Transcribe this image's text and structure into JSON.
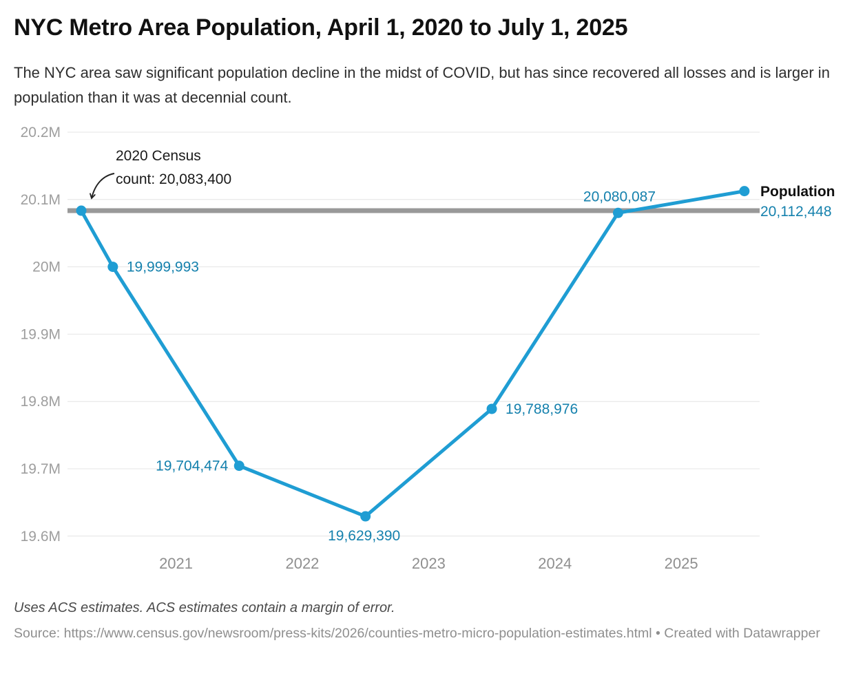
{
  "header": {
    "title": "NYC Metro Area Population, April 1, 2020 to July 1, 2025",
    "description": "The NYC area saw significant population decline in the midst of COVID, but has since recovered all losses and is larger in population than it was at decennial count."
  },
  "chart_data": {
    "type": "line",
    "title": "NYC Metro Area Population, April 1, 2020 to July 1, 2025",
    "grid": "horizontal",
    "legend_position": "right-of-last-point",
    "ylim": [
      19600000,
      20200000
    ],
    "xlim_dates": [
      "2020-04-01",
      "2025-07-01"
    ],
    "y_ticks": [
      {
        "value": 20200000,
        "label": "20.2M"
      },
      {
        "value": 20100000,
        "label": "20.1M"
      },
      {
        "value": 20000000,
        "label": "20M"
      },
      {
        "value": 19900000,
        "label": "19.9M"
      },
      {
        "value": 19800000,
        "label": "19.8M"
      },
      {
        "value": 19700000,
        "label": "19.7M"
      },
      {
        "value": 19600000,
        "label": "19.6M"
      }
    ],
    "x_ticks": [
      {
        "x": 2021,
        "label": "2021"
      },
      {
        "x": 2022,
        "label": "2022"
      },
      {
        "x": 2023,
        "label": "2023"
      },
      {
        "x": 2024,
        "label": "2024"
      },
      {
        "x": 2025,
        "label": "2025"
      }
    ],
    "reference_line": {
      "value": 20083400
    },
    "annotation": {
      "text": "2020 Census\ncount: 20,083,400",
      "points_to_value": 20083400
    },
    "series": [
      {
        "name": "Population",
        "points": [
          {
            "date": "2020-04-01",
            "x": 2020.25,
            "value": 20083400,
            "label": "20,083,400",
            "label_pos": "annotation"
          },
          {
            "date": "2020-07-01",
            "x": 2020.5,
            "value": 19999993,
            "label": "19,999,993",
            "label_pos": "right"
          },
          {
            "date": "2021-07-01",
            "x": 2021.5,
            "value": 19704474,
            "label": "19,704,474",
            "label_pos": "left"
          },
          {
            "date": "2022-07-01",
            "x": 2022.5,
            "value": 19629390,
            "label": "19,629,390",
            "label_pos": "below"
          },
          {
            "date": "2023-07-01",
            "x": 2023.5,
            "value": 19788976,
            "label": "19,788,976",
            "label_pos": "right"
          },
          {
            "date": "2024-07-01",
            "x": 2024.5,
            "value": 20080087,
            "label": "20,080,087",
            "label_pos": "above"
          },
          {
            "date": "2025-07-01",
            "x": 2025.5,
            "value": 20112448,
            "label": "20,112,448",
            "label_pos": "legend"
          }
        ]
      }
    ]
  },
  "legend": {
    "name_bind": "Population",
    "value_bind": "20,112,448"
  },
  "colors": {
    "line": "#1f9dd3",
    "point": "#1f9dd3",
    "value_label": "#1581ad",
    "reference_line": "#999999",
    "grid": "#e4e4e4",
    "y_axis_text": "#9e9e9e",
    "x_axis_text": "#8f8f8f",
    "annotation_arrow": "#222222",
    "legend_name": "#111111"
  },
  "footer": {
    "notes": "Uses ACS estimates. ACS estimates contain a margin of error.",
    "source": "Source: https://www.census.gov/newsroom/press-kits/2026/counties-metro-micro-population-estimates.html • Created with Datawrapper"
  }
}
